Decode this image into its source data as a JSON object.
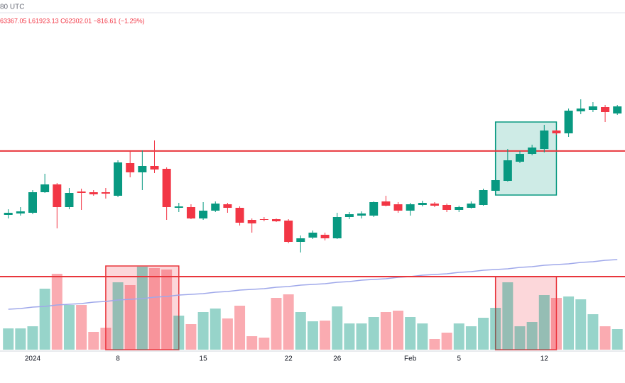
{
  "chart_data": {
    "type": "candlestick",
    "header_time": "80 UTC",
    "header_ohlc": "63367.05  L61923.13  C62302.01  −816.61 (−1.29%)",
    "categories": [
      null,
      null,
      "2024",
      null,
      null,
      null,
      null,
      null,
      null,
      "8",
      null,
      null,
      null,
      null,
      null,
      null,
      "15",
      null,
      null,
      null,
      null,
      null,
      null,
      "22",
      null,
      null,
      null,
      "26",
      null,
      null,
      null,
      null,
      null,
      "Feb",
      null,
      null,
      null,
      "5",
      null,
      null,
      null,
      null,
      null,
      null,
      "12",
      null,
      null,
      null,
      null,
      null,
      null
    ],
    "open": [
      41965,
      42099,
      42166,
      44109,
      44846,
      42702,
      44176,
      44109,
      44109,
      43774,
      46856,
      45985,
      46588,
      46320,
      42635,
      42702,
      41630,
      42367,
      42970,
      42635,
      41496,
      41563,
      41563,
      41429,
      39419,
      39821,
      40089,
      39754,
      41764,
      41898,
      41898,
      43238,
      42970,
      42367,
      42903,
      43037,
      42903,
      42434,
      42635,
      42903,
      44243,
      45181,
      46990,
      47727,
      48196,
      49938,
      49670,
      51747,
      51881,
      52149,
      51546
    ],
    "high": [
      42501,
      42702,
      44310,
      45851,
      44980,
      44511,
      44444,
      44310,
      44511,
      47124,
      47995,
      48062,
      49000,
      46454,
      43104,
      42970,
      43171,
      43238,
      43104,
      42769,
      41630,
      41764,
      41630,
      41563,
      40022,
      40491,
      40290,
      42166,
      42233,
      42300,
      43238,
      43774,
      43171,
      43104,
      43305,
      43171,
      43037,
      42836,
      43238,
      44444,
      45382,
      48196,
      47995,
      48598,
      50474,
      50005,
      52015,
      52886,
      52618,
      52350,
      52350
    ],
    "low": [
      41630,
      41898,
      42032,
      44042,
      40692,
      42501,
      42434,
      43774,
      43506,
      43640,
      45516,
      44310,
      45918,
      41496,
      42233,
      41563,
      41496,
      42233,
      42166,
      40960,
      40290,
      41362,
      41295,
      39285,
      38414,
      39687,
      39553,
      39687,
      41563,
      41630,
      41764,
      42769,
      42166,
      41898,
      42769,
      42702,
      42233,
      42233,
      42568,
      42836,
      44176,
      45114,
      46856,
      47593,
      47861,
      49536,
      49335,
      51479,
      51680,
      50742,
      51412
    ],
    "close": [
      42166,
      42300,
      44109,
      44846,
      42702,
      44042,
      44042,
      43908,
      43975,
      46923,
      45985,
      46588,
      46253,
      42702,
      42769,
      41630,
      42367,
      43037,
      42635,
      41228,
      41161,
      41496,
      41362,
      39419,
      39754,
      40290,
      39754,
      41764,
      42032,
      42099,
      43171,
      42836,
      42367,
      42970,
      43104,
      42836,
      42434,
      42702,
      43037,
      44310,
      45248,
      47124,
      47727,
      48330,
      49938,
      49670,
      51814,
      52015,
      52216,
      51680,
      52216
    ],
    "volume": [
      30,
      30,
      33,
      86,
      107,
      63,
      63,
      25,
      31,
      95,
      91,
      117,
      115,
      113,
      48,
      36,
      53,
      58,
      44,
      62,
      19,
      17,
      73,
      78,
      53,
      40,
      41,
      61,
      37,
      37,
      46,
      53,
      55,
      46,
      37,
      15,
      24,
      37,
      33,
      45,
      59,
      95,
      33,
      39,
      77,
      73,
      75,
      71,
      50,
      33,
      29
    ],
    "volume_ma": [
      57,
      58,
      60,
      61,
      63,
      64,
      65,
      67,
      68,
      70,
      71,
      72,
      74,
      75,
      77,
      78,
      79,
      81,
      82,
      84,
      85,
      86,
      88,
      89,
      91,
      92,
      93,
      95,
      96,
      98,
      99,
      100,
      102,
      103,
      105,
      106,
      107,
      109,
      110,
      112,
      113,
      114,
      116,
      117,
      119,
      120,
      121,
      123,
      124,
      126,
      127
    ],
    "up_color": "#089981",
    "down_color": "#f23645",
    "ma_color": "#9fa8ea",
    "price_level": 48000,
    "volume_level": 103,
    "level_color": "#e8363c",
    "price_zone": {
      "from": 40,
      "to": 45,
      "low": 43841,
      "high": 50742
    },
    "volume_zones": [
      {
        "from": 8,
        "to": 14,
        "top": 118
      },
      {
        "from": 40,
        "to": 45,
        "top": 103
      }
    ]
  }
}
